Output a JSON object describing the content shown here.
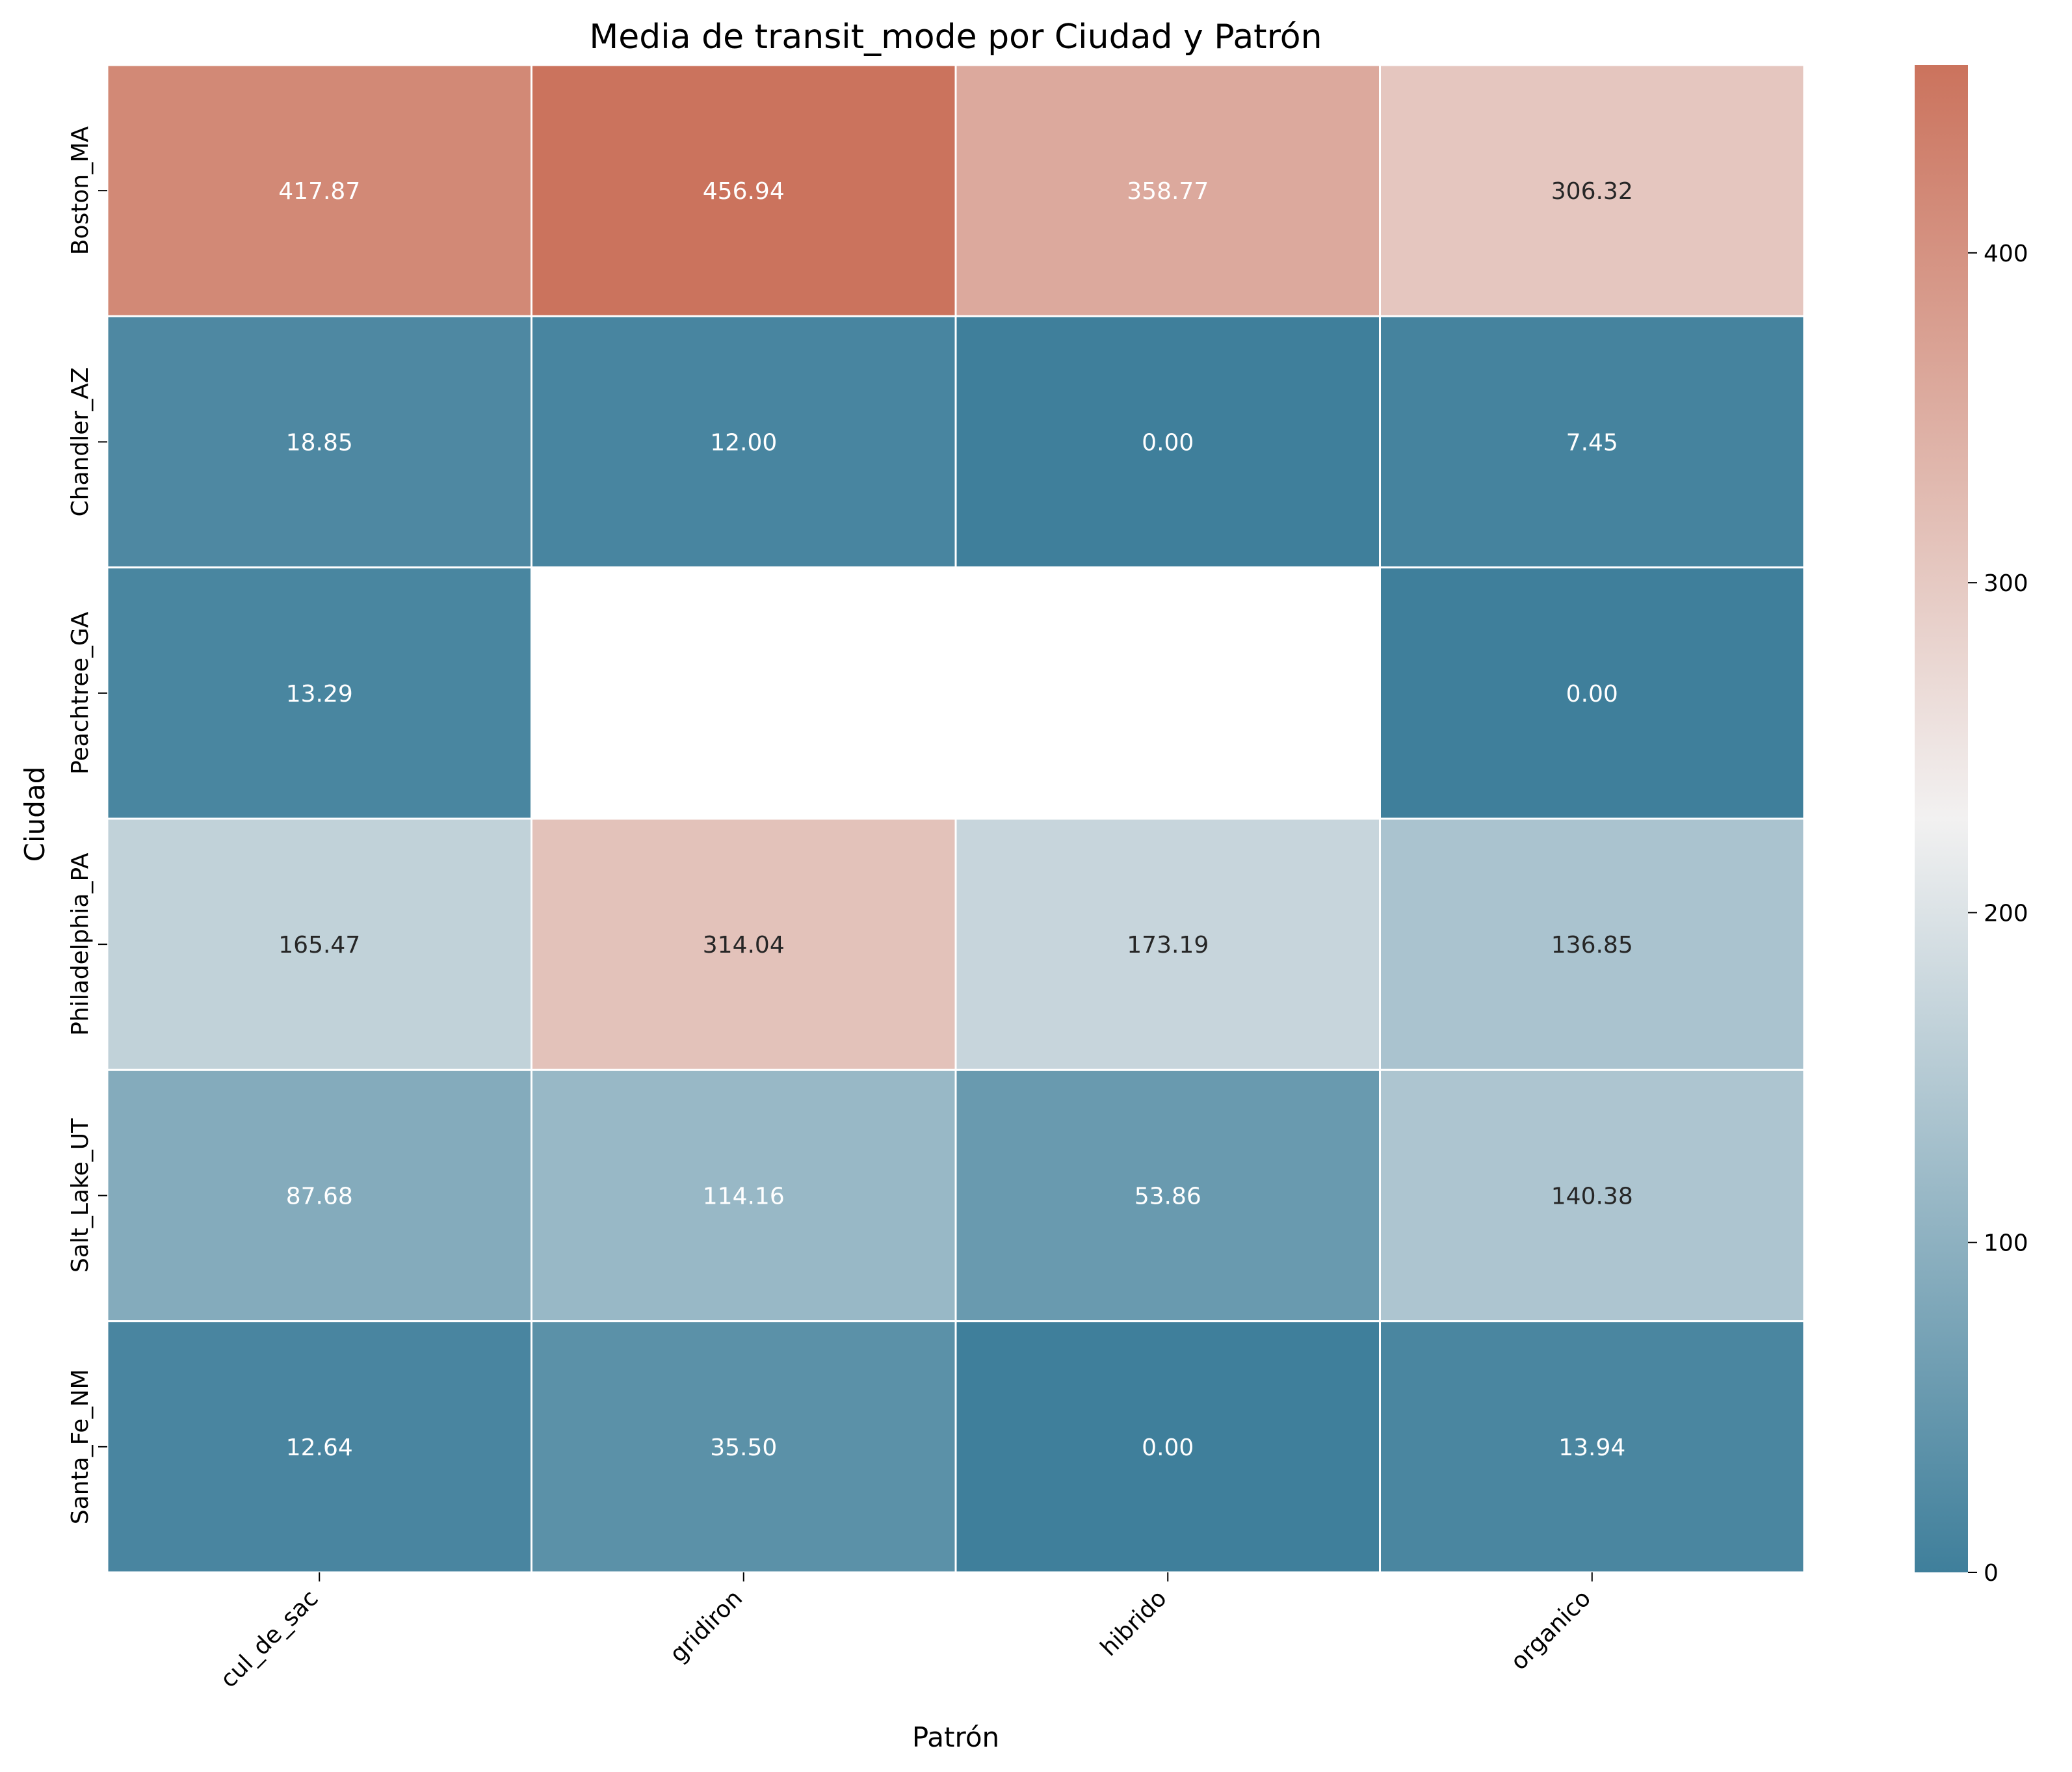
{
  "chart_data": {
    "type": "heatmap",
    "title": "Media de transit_mode por Ciudad y Patrón",
    "xlabel": "Patrón",
    "ylabel": "Ciudad",
    "x_categories": [
      "cul_de_sac",
      "gridiron",
      "hibrido",
      "organico"
    ],
    "y_categories": [
      "Boston_MA",
      "Chandler_AZ",
      "Peachtree_GA",
      "Philadelphia_PA",
      "Salt_Lake_UT",
      "Santa_Fe_NM"
    ],
    "values": [
      [
        417.87,
        456.94,
        358.77,
        306.32
      ],
      [
        18.85,
        12.0,
        0.0,
        7.45
      ],
      [
        13.29,
        null,
        null,
        0.0
      ],
      [
        165.47,
        314.04,
        173.19,
        136.85
      ],
      [
        87.68,
        114.16,
        53.86,
        140.38
      ],
      [
        12.64,
        35.5,
        0.0,
        13.94
      ]
    ],
    "value_format": "2 decimals",
    "colorbar": {
      "range": [
        0,
        456.94
      ],
      "ticks": [
        0,
        100,
        200,
        300,
        400
      ],
      "colormap": "diverging",
      "color_low": "#3f7f9b",
      "color_mid": "#f2f1f1",
      "color_high": "#cb735d"
    },
    "missing_color": "#ffffff",
    "grid": false,
    "legend": "colorbar-right"
  }
}
